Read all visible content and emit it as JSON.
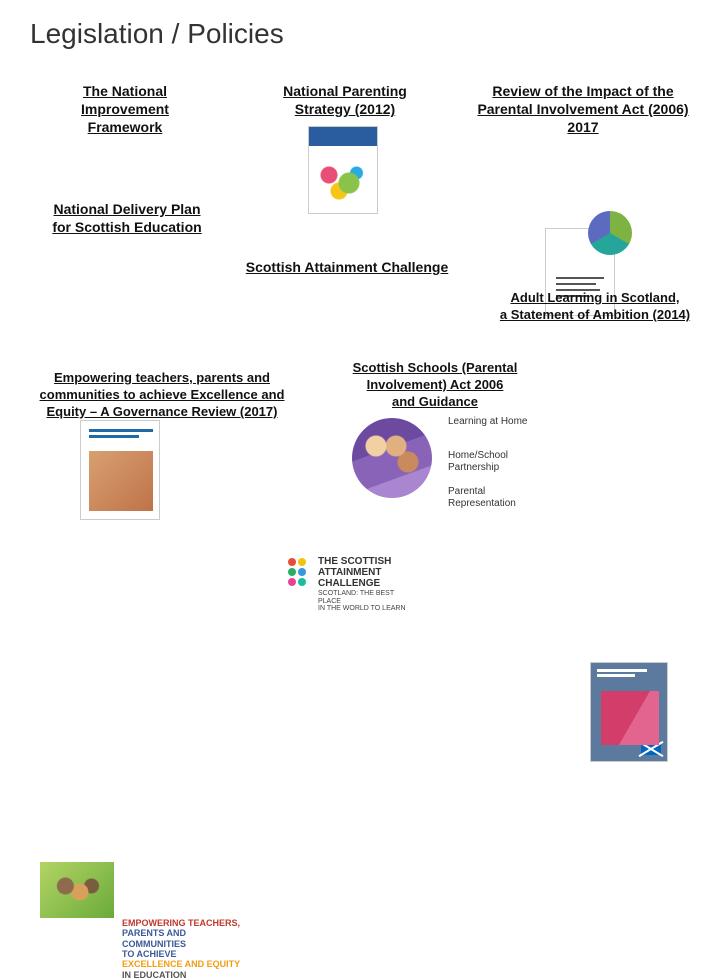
{
  "title": "Legislation / Policies",
  "colors": {
    "title": "#333333",
    "link": "#111111",
    "background": "#ffffff"
  },
  "items": {
    "nif": {
      "label": "The National\nImprovement\nFramework"
    },
    "parenting": {
      "label": "National Parenting\nStrategy (2012)"
    },
    "review": {
      "label": "Review of the Impact of the\nParental Involvement Act (2006)\n2017"
    },
    "ndp": {
      "label": "National Delivery Plan\nfor Scottish Education"
    },
    "sac": {
      "label": "Scottish Attainment Challenge",
      "logo_line1": "THE SCOTTISH",
      "logo_line2": "ATTAINMENT",
      "logo_line3": "CHALLENGE",
      "logo_sub1": "SCOTLAND: THE BEST PLACE",
      "logo_sub2": "IN THE WORLD TO LEARN",
      "dot_colors": [
        "#e74c3c",
        "#f1c40f",
        "#27ae60",
        "#3498db",
        "#e84393",
        "#1abc9c"
      ]
    },
    "adult": {
      "label": "Adult Learning in Scotland,\na Statement of Ambition (2014)"
    },
    "empower": {
      "label": "Empowering teachers, parents and\ncommunities to achieve Excellence and\nEquity – A Governance Review (2017)",
      "block_l1": "EMPOWERING TEACHERS,",
      "block_l2": "PARENTS AND COMMUNITIES",
      "block_l3": "TO ACHIEVE",
      "block_l4": "EXCELLENCE AND EQUITY",
      "block_l5": "IN EDUCATION"
    },
    "schools": {
      "label": "Scottish Schools (Parental\nInvolvement) Act 2006\nand Guidance",
      "bullets": [
        "Learning at Home",
        "Home/School Partnership",
        "Parental Representation"
      ]
    }
  },
  "typography": {
    "title_fontsize": 28,
    "link_fontsize": 14,
    "small_fontsize": 10
  }
}
